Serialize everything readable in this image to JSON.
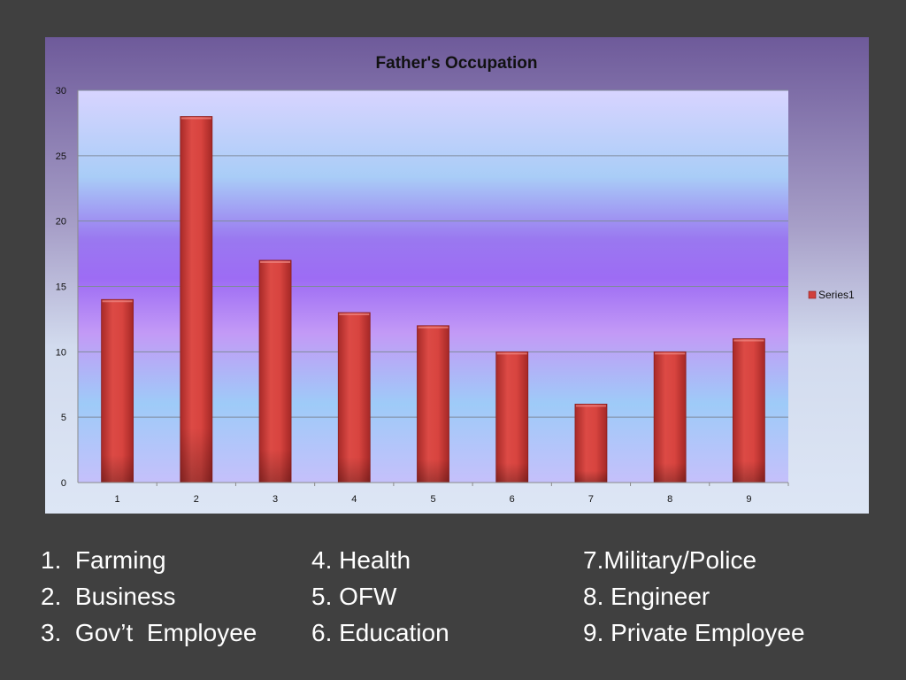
{
  "chart_data": {
    "type": "bar",
    "title": "Father's Occupation",
    "categories": [
      "1",
      "2",
      "3",
      "4",
      "5",
      "6",
      "7",
      "8",
      "9"
    ],
    "series": [
      {
        "name": "Series1",
        "values": [
          14,
          28,
          17,
          13,
          12,
          10,
          6,
          10,
          11
        ]
      }
    ],
    "ylim": [
      0,
      30
    ],
    "yticks": [
      "0",
      "5",
      "10",
      "15",
      "20",
      "25",
      "30"
    ],
    "xlabel": "",
    "ylabel": "",
    "grid": true,
    "legend_position": "right",
    "bar_color": "#d0403c"
  },
  "legend": [
    {
      "num": "1.",
      "text": "Farming"
    },
    {
      "num": "2.",
      "text": "Business"
    },
    {
      "num": "3.",
      "text": "Gov’t  Employee"
    },
    {
      "text": "4. Health"
    },
    {
      "text": "5. OFW"
    },
    {
      "text": "6. Education"
    },
    {
      "text": "7.Military/Police"
    },
    {
      "text": "8. Engineer"
    },
    {
      "text": "9. Private Employee"
    }
  ]
}
